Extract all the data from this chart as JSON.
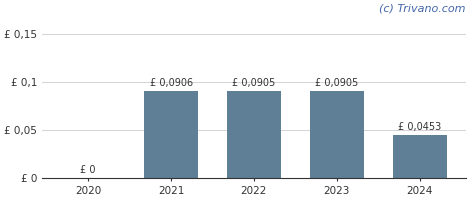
{
  "categories": [
    "2020",
    "2021",
    "2022",
    "2023",
    "2024"
  ],
  "values": [
    0.0,
    0.0906,
    0.0905,
    0.0905,
    0.0453
  ],
  "bar_color": "#5f7f96",
  "bar_labels": [
    "£ 0",
    "£ 0,0906",
    "£ 0,0905",
    "£ 0,0905",
    "£ 0,0453"
  ],
  "yticks": [
    0,
    0.05,
    0.1,
    0.15
  ],
  "ytick_labels": [
    "£ 0",
    "£ 0,05",
    "£ 0,1",
    "£ 0,15"
  ],
  "ylim": [
    0,
    0.168
  ],
  "watermark": "(c) Trivano.com",
  "background_color": "#ffffff",
  "bar_label_fontsize": 7.0,
  "tick_fontsize": 7.5,
  "watermark_fontsize": 8.0,
  "bar_width": 0.65
}
